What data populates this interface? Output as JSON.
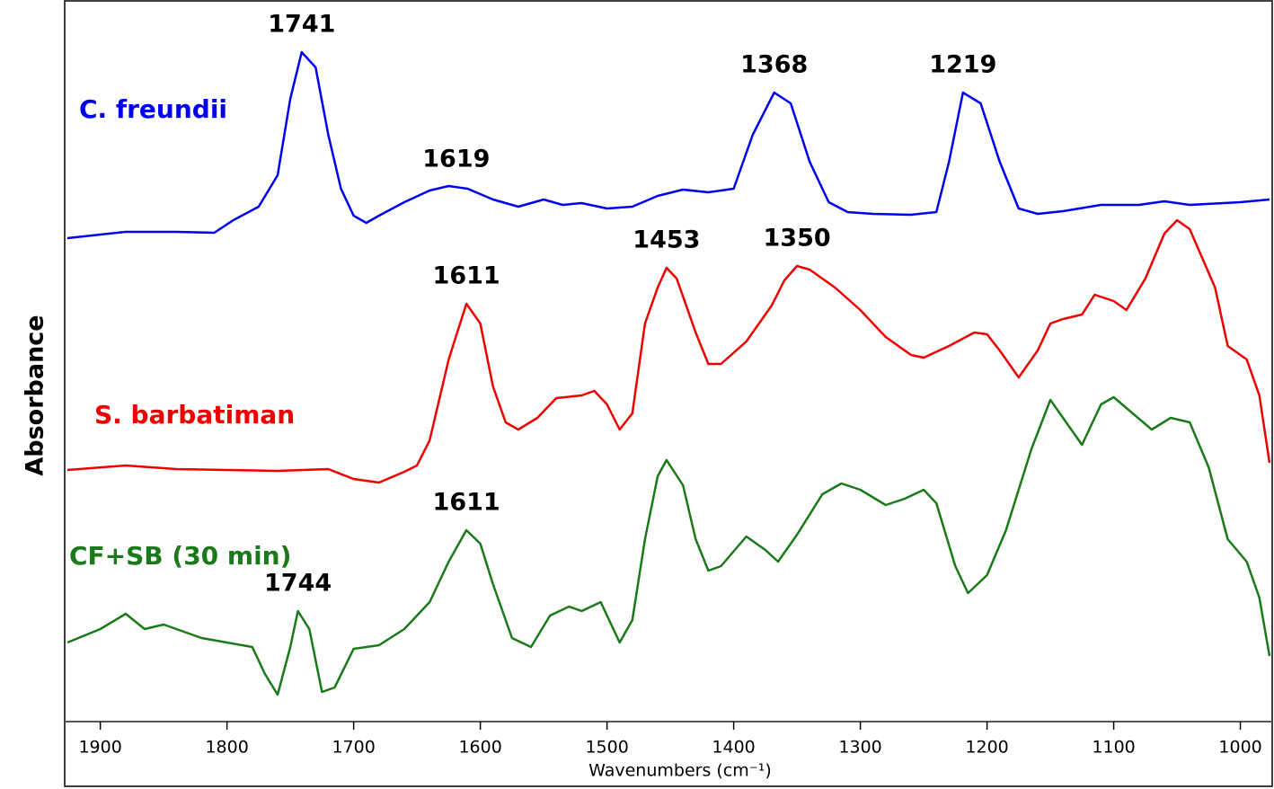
{
  "chart_data": {
    "type": "line",
    "xlabel": "Wavenumbers (cm⁻¹)",
    "ylabel": "Absorbance",
    "xlim": [
      1926,
      977
    ],
    "xticks": [
      1900,
      1800,
      1700,
      1600,
      1500,
      1400,
      1300,
      1200,
      1100,
      1000
    ],
    "ylim": [
      0,
      800
    ],
    "series": [
      {
        "name": "C. freundii",
        "color": "#0000ee",
        "x": [
          1926,
          1880,
          1840,
          1810,
          1795,
          1775,
          1760,
          1750,
          1741,
          1730,
          1720,
          1710,
          1700,
          1690,
          1680,
          1660,
          1640,
          1625,
          1610,
          1590,
          1570,
          1550,
          1535,
          1520,
          1500,
          1480,
          1460,
          1440,
          1420,
          1400,
          1385,
          1368,
          1355,
          1340,
          1325,
          1310,
          1290,
          1260,
          1240,
          1230,
          1219,
          1205,
          1190,
          1175,
          1160,
          1140,
          1110,
          1080,
          1060,
          1040,
          1000,
          977
        ],
        "values": [
          538,
          545,
          545,
          544,
          558,
          573,
          608,
          693,
          745,
          728,
          653,
          593,
          563,
          555,
          563,
          578,
          591,
          596,
          593,
          581,
          573,
          581,
          575,
          577,
          571,
          573,
          585,
          592,
          589,
          593,
          653,
          700,
          688,
          623,
          578,
          567,
          565,
          564,
          567,
          623,
          700,
          688,
          623,
          571,
          565,
          568,
          575,
          575,
          579,
          575,
          578,
          581
        ],
        "peaks": [
          1741,
          1619,
          1368,
          1219
        ]
      },
      {
        "name": "S. barbatiman",
        "color": "#ee0000",
        "x": [
          1926,
          1880,
          1840,
          1800,
          1760,
          1720,
          1700,
          1680,
          1660,
          1650,
          1640,
          1625,
          1611,
          1600,
          1590,
          1580,
          1570,
          1555,
          1540,
          1520,
          1510,
          1500,
          1490,
          1480,
          1470,
          1460,
          1453,
          1445,
          1430,
          1420,
          1410,
          1390,
          1370,
          1360,
          1350,
          1340,
          1320,
          1300,
          1280,
          1260,
          1250,
          1230,
          1210,
          1200,
          1190,
          1175,
          1160,
          1150,
          1140,
          1125,
          1115,
          1100,
          1090,
          1075,
          1060,
          1050,
          1040,
          1020,
          1010,
          995,
          985,
          977
        ],
        "values": [
          280,
          285,
          281,
          280,
          279,
          281,
          270,
          266,
          278,
          285,
          313,
          403,
          465,
          443,
          373,
          333,
          325,
          338,
          360,
          363,
          368,
          353,
          325,
          343,
          443,
          483,
          505,
          493,
          433,
          398,
          398,
          423,
          463,
          491,
          507,
          503,
          483,
          458,
          428,
          408,
          405,
          418,
          433,
          431,
          413,
          383,
          413,
          443,
          448,
          453,
          475,
          468,
          458,
          493,
          543,
          558,
          548,
          483,
          418,
          403,
          363,
          288
        ],
        "peaks": [
          1611,
          1453,
          1350
        ]
      },
      {
        "name": "CF+SB (30 min)",
        "color": "#1a7a1a",
        "x": [
          1926,
          1900,
          1880,
          1865,
          1850,
          1820,
          1800,
          1780,
          1770,
          1760,
          1750,
          1744,
          1735,
          1725,
          1715,
          1700,
          1680,
          1660,
          1640,
          1625,
          1611,
          1600,
          1590,
          1575,
          1560,
          1545,
          1530,
          1520,
          1505,
          1490,
          1480,
          1470,
          1460,
          1453,
          1440,
          1430,
          1420,
          1410,
          1390,
          1375,
          1365,
          1350,
          1330,
          1315,
          1300,
          1280,
          1265,
          1250,
          1240,
          1225,
          1215,
          1200,
          1185,
          1165,
          1150,
          1135,
          1125,
          1110,
          1100,
          1085,
          1070,
          1055,
          1040,
          1025,
          1010,
          995,
          985,
          977
        ],
        "values": [
          88,
          103,
          120,
          103,
          108,
          93,
          88,
          83,
          53,
          30,
          83,
          123,
          103,
          33,
          38,
          81,
          85,
          103,
          133,
          178,
          213,
          198,
          153,
          93,
          83,
          118,
          128,
          123,
          133,
          88,
          113,
          203,
          273,
          291,
          263,
          203,
          168,
          173,
          206,
          191,
          178,
          208,
          253,
          265,
          258,
          241,
          248,
          258,
          243,
          173,
          143,
          163,
          213,
          303,
          358,
          328,
          308,
          353,
          361,
          343,
          325,
          338,
          333,
          283,
          203,
          178,
          138,
          73
        ],
        "peaks": [
          1611,
          1744
        ]
      }
    ]
  }
}
